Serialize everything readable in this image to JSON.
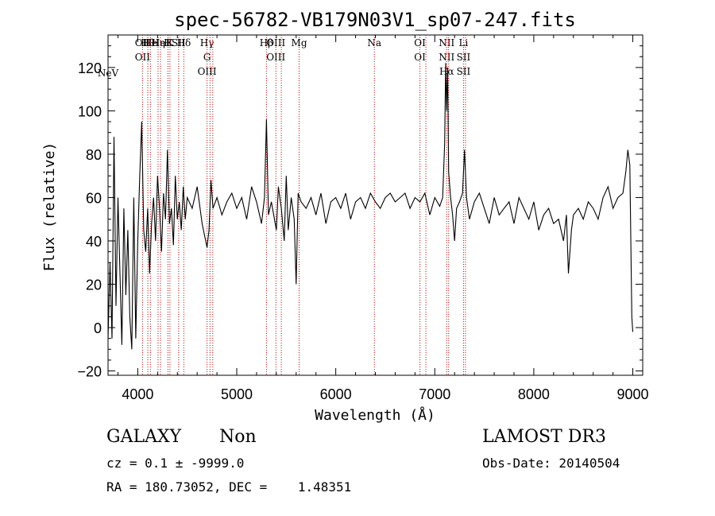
{
  "chart_data": {
    "type": "line",
    "title": "spec-56782-VB179N03V1_sp07-247.fits",
    "xlabel": "Wavelength (Å)",
    "ylabel": "Flux (relative)",
    "xlim": [
      3700,
      9100
    ],
    "ylim": [
      -22,
      135
    ],
    "xticks": [
      "4000",
      "5000",
      "6000",
      "7000",
      "8000",
      "9000"
    ],
    "yticks": [
      "−20",
      "0",
      "20",
      "40",
      "60",
      "80",
      "100",
      "120"
    ],
    "grid": false,
    "series": [
      {
        "color": "#000000",
        "x": [
          3700,
          3720,
          3740,
          3760,
          3780,
          3800,
          3820,
          3840,
          3860,
          3880,
          3900,
          3920,
          3940,
          3960,
          3980,
          4000,
          4020,
          4040,
          4060,
          4080,
          4100,
          4120,
          4140,
          4160,
          4180,
          4200,
          4220,
          4240,
          4260,
          4280,
          4300,
          4320,
          4340,
          4360,
          4380,
          4400,
          4420,
          4440,
          4460,
          4480,
          4500,
          4550,
          4600,
          4650,
          4700,
          4720,
          4740,
          4760,
          4800,
          4850,
          4900,
          4950,
          5000,
          5050,
          5100,
          5150,
          5200,
          5250,
          5280,
          5300,
          5320,
          5350,
          5400,
          5420,
          5450,
          5480,
          5500,
          5520,
          5550,
          5580,
          5600,
          5620,
          5650,
          5700,
          5750,
          5800,
          5850,
          5900,
          5950,
          6000,
          6050,
          6100,
          6150,
          6200,
          6250,
          6300,
          6350,
          6400,
          6450,
          6500,
          6550,
          6600,
          6650,
          6700,
          6750,
          6800,
          6850,
          6900,
          6950,
          7000,
          7050,
          7080,
          7100,
          7110,
          7120,
          7130,
          7140,
          7160,
          7180,
          7200,
          7220,
          7250,
          7280,
          7300,
          7320,
          7350,
          7400,
          7450,
          7500,
          7550,
          7600,
          7650,
          7700,
          7750,
          7800,
          7850,
          7900,
          7950,
          8000,
          8050,
          8100,
          8150,
          8200,
          8250,
          8300,
          8330,
          8350,
          8380,
          8400,
          8450,
          8500,
          8550,
          8600,
          8650,
          8700,
          8750,
          8800,
          8850,
          8900,
          8930,
          8950,
          8970,
          8990,
          9000
        ],
        "y": [
          -5,
          30,
          -5,
          88,
          10,
          60,
          25,
          -8,
          55,
          15,
          45,
          5,
          -10,
          60,
          -5,
          40,
          70,
          95,
          45,
          35,
          55,
          25,
          48,
          60,
          40,
          70,
          55,
          35,
          62,
          50,
          82,
          48,
          55,
          38,
          70,
          50,
          58,
          45,
          65,
          50,
          60,
          55,
          65,
          48,
          37,
          45,
          68,
          55,
          60,
          52,
          58,
          62,
          55,
          60,
          50,
          65,
          58,
          48,
          60,
          96,
          52,
          58,
          45,
          65,
          55,
          40,
          70,
          45,
          60,
          50,
          20,
          62,
          58,
          55,
          60,
          52,
          62,
          48,
          58,
          60,
          55,
          62,
          50,
          58,
          60,
          55,
          62,
          58,
          55,
          60,
          62,
          58,
          60,
          62,
          55,
          60,
          58,
          62,
          52,
          60,
          56,
          60,
          85,
          122,
          100,
          120,
          72,
          60,
          52,
          40,
          55,
          58,
          62,
          82,
          60,
          50,
          58,
          62,
          55,
          48,
          60,
          52,
          55,
          58,
          48,
          60,
          55,
          50,
          58,
          45,
          52,
          55,
          48,
          50,
          40,
          52,
          25,
          45,
          52,
          55,
          50,
          58,
          55,
          50,
          60,
          65,
          55,
          60,
          62,
          72,
          82,
          75,
          5,
          -2
        ]
      }
    ],
    "line_marks": [
      {
        "w": 4048,
        "labels": [
          "OII",
          "OII"
        ]
      },
      {
        "w": 4102,
        "labels": [
          "Hθ"
        ]
      },
      {
        "w": 4128,
        "labels": [
          "He"
        ]
      },
      {
        "w": 4205,
        "labels": [
          "Hη"
        ]
      },
      {
        "w": 4230,
        "labels": [
          "HeI"
        ]
      },
      {
        "w": 4305,
        "labels": [
          "H"
        ]
      },
      {
        "w": 4325,
        "labels": [
          "K"
        ]
      },
      {
        "w": 4413,
        "labels": [
          "SII"
        ]
      },
      {
        "w": 4465,
        "labels": [
          "Hδ"
        ]
      },
      {
        "w": 4700,
        "labels": [
          "Hγ",
          "G",
          "OIII"
        ]
      },
      {
        "w": 4730,
        "labels": []
      },
      {
        "w": 4758,
        "labels": []
      },
      {
        "w": 5300,
        "labels": [
          "Hβ"
        ]
      },
      {
        "w": 5395,
        "labels": [
          "OIII",
          "OIII"
        ]
      },
      {
        "w": 5450,
        "labels": []
      },
      {
        "w": 5630,
        "labels": [
          "Mg"
        ]
      },
      {
        "w": 6390,
        "labels": [
          "Na"
        ]
      },
      {
        "w": 6850,
        "labels": [
          "OI",
          "OI"
        ]
      },
      {
        "w": 6910,
        "labels": []
      },
      {
        "w": 7120,
        "labels": [
          "NII",
          "NII",
          "Hα"
        ]
      },
      {
        "w": 7140,
        "labels": []
      },
      {
        "w": 7290,
        "labels": [
          "Li",
          "SII",
          "SII"
        ]
      },
      {
        "w": 7310,
        "labels": []
      }
    ],
    "neV_label": "NeV"
  },
  "footer": {
    "class_label": "GALAXY",
    "subclass_label": "Non",
    "survey_label": "LAMOST DR3",
    "cz_text": "cz = 0.1 ± -9999.0",
    "obs_date_text": "Obs-Date: 20140504",
    "coords_text": "RA = 180.73052, DEC =    1.48351"
  }
}
